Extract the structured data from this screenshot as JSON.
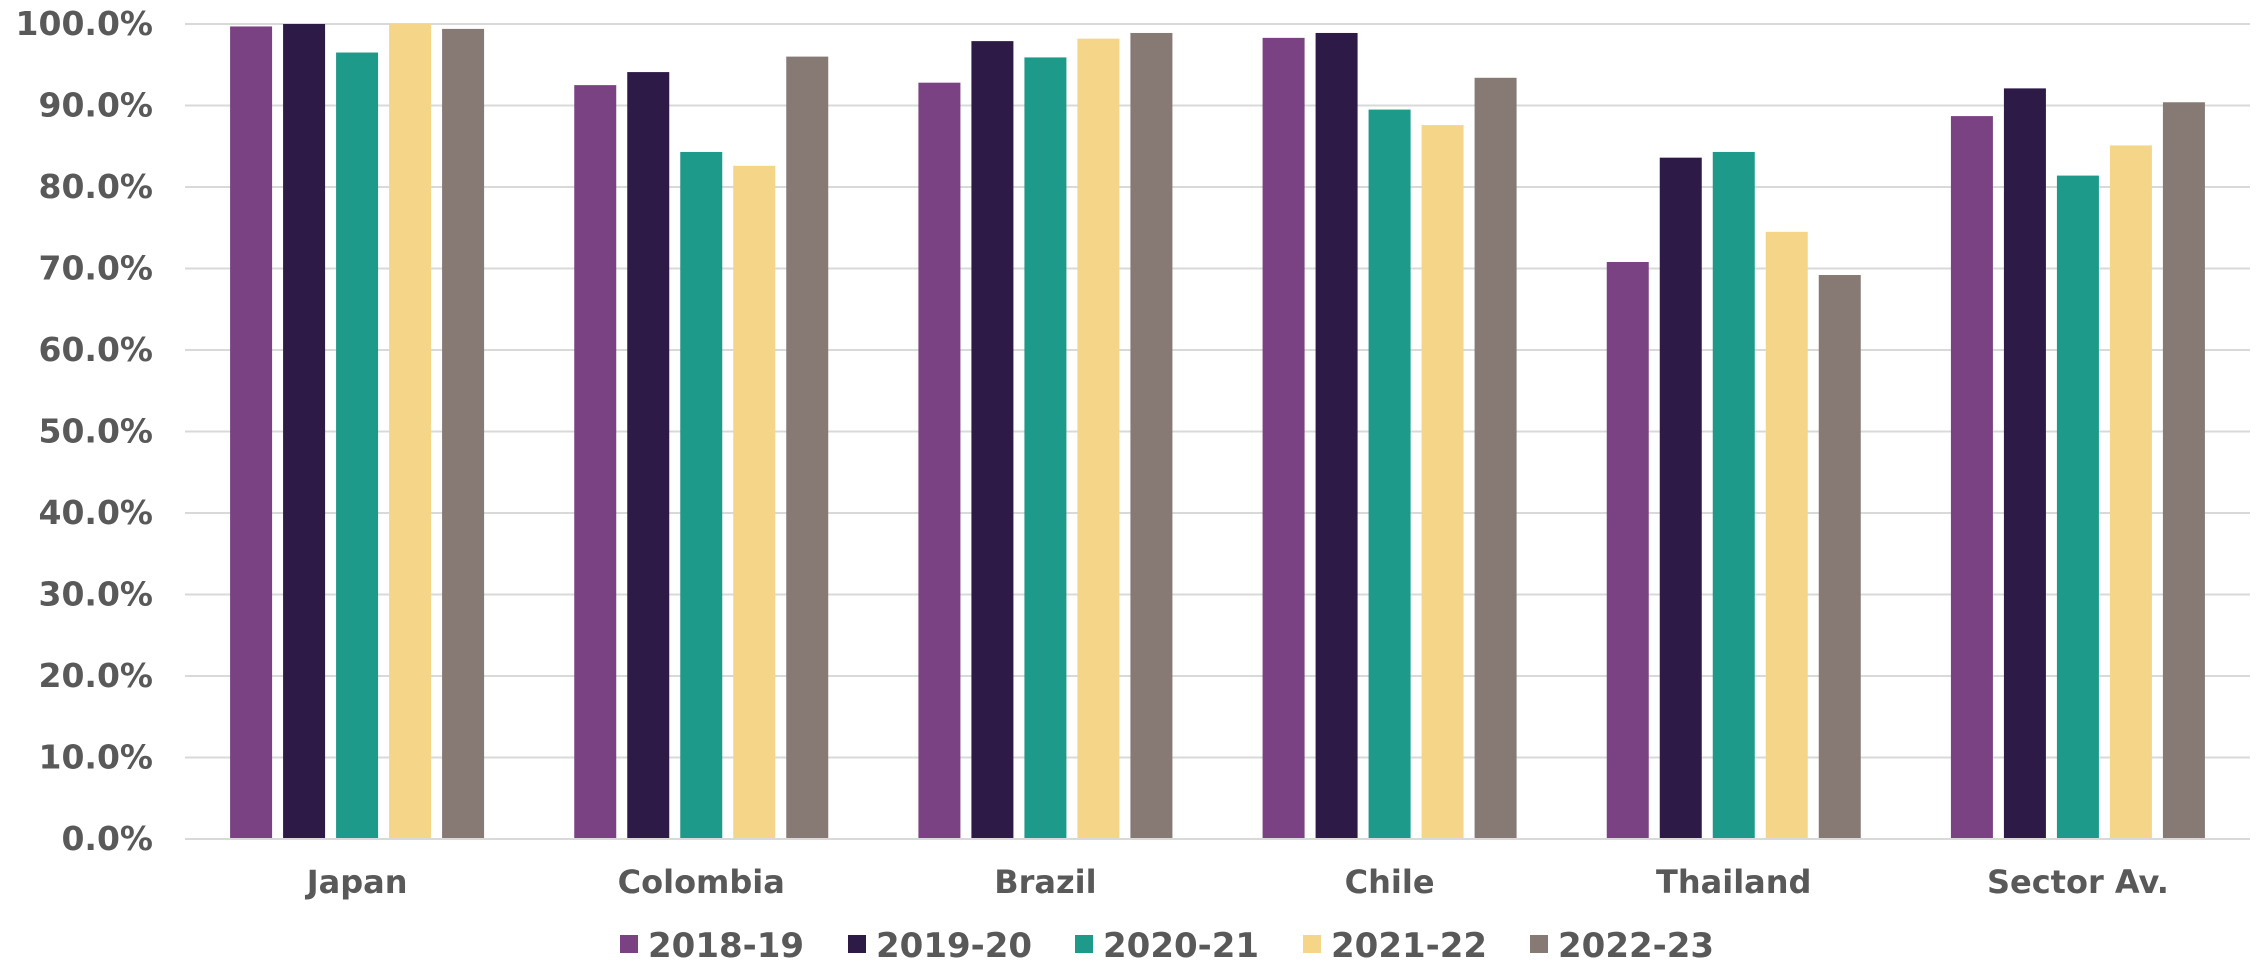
{
  "chart_data": {
    "type": "bar",
    "title": "",
    "xlabel": "",
    "ylabel": "",
    "categories": [
      "Japan",
      "Colombia",
      "Brazil",
      "Chile",
      "Thailand",
      "Sector Av."
    ],
    "series": [
      {
        "name": "2018-19",
        "color": "#7b4283",
        "values": [
          99.7,
          92.5,
          92.8,
          98.3,
          70.8,
          88.7
        ]
      },
      {
        "name": "2019-20",
        "color": "#2e1a47",
        "values": [
          100.0,
          94.1,
          97.9,
          98.9,
          83.6,
          92.1
        ]
      },
      {
        "name": "2020-21",
        "color": "#1e9a8a",
        "values": [
          96.5,
          84.3,
          95.9,
          89.5,
          84.3,
          81.4
        ]
      },
      {
        "name": "2021-22",
        "color": "#f5d587",
        "values": [
          100.0,
          82.6,
          98.2,
          87.6,
          74.5,
          85.1
        ]
      },
      {
        "name": "2022-23",
        "color": "#877a75",
        "values": [
          99.4,
          96.0,
          98.9,
          93.4,
          69.2,
          90.4
        ]
      }
    ],
    "ylim": [
      0,
      100
    ],
    "yticks": [
      "0.0%",
      "10.0%",
      "20.0%",
      "30.0%",
      "40.0%",
      "50.0%",
      "60.0%",
      "70.0%",
      "80.0%",
      "90.0%",
      "100.0%"
    ],
    "grid": true,
    "legend_position": "bottom"
  }
}
